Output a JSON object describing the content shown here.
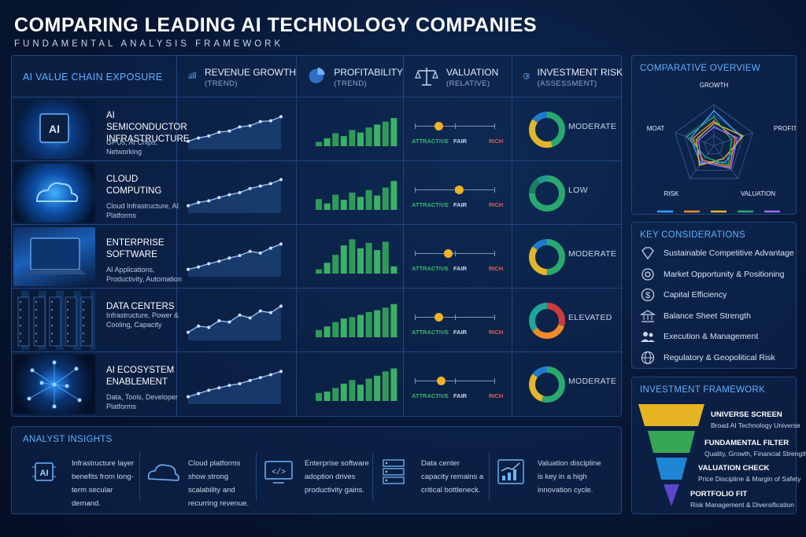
{
  "title": "COMPARING LEADING AI TECHNOLOGY COMPANIES",
  "subtitle": "FUNDAMENTAL ANALYSIS FRAMEWORK",
  "table": {
    "first_header": "AI VALUE CHAIN EXPOSURE",
    "columns": [
      {
        "title": "REVENUE GROWTH",
        "sub": "(TREND)",
        "icon": "bar-chart-icon"
      },
      {
        "title": "PROFITABILITY",
        "sub": "(TREND)",
        "icon": "pie-chart-icon"
      },
      {
        "title": "VALUATION",
        "sub": "(RELATIVE)",
        "icon": "scale-icon"
      },
      {
        "title": "INVESTMENT RISK",
        "sub": "(ASSESSMENT)",
        "icon": "shield-icon"
      }
    ],
    "valuation_scale": [
      "ATTRACTIVE",
      "FAIR",
      "RICH"
    ],
    "rows": [
      {
        "name": "AI SEMICONDUCTOR INFRASTRUCTURE",
        "desc": "GPUs, AI Chips, Networking",
        "image": "ai-chip-image",
        "growth": [
          20,
          28,
          33,
          42,
          45,
          55,
          58,
          68,
          70,
          80
        ],
        "profit": [
          12,
          22,
          36,
          28,
          45,
          38,
          52,
          60,
          68,
          78
        ],
        "valuation": 0.3,
        "risk": "MODERATE",
        "donut": [
          {
            "v": 0.45,
            "c": "#29a96f"
          },
          {
            "v": 0.4,
            "c": "#e0b72d"
          },
          {
            "v": 0.15,
            "c": "#1f7bc9"
          }
        ]
      },
      {
        "name": "CLOUD COMPUTING",
        "desc": "Cloud Infrastructure, AI Platforms",
        "image": "cloud-image",
        "growth": [
          18,
          26,
          30,
          38,
          45,
          50,
          60,
          66,
          72,
          82
        ],
        "profit": [
          30,
          18,
          42,
          28,
          48,
          36,
          55,
          40,
          62,
          80
        ],
        "valuation": 0.55,
        "risk": "LOW",
        "donut": [
          {
            "v": 0.75,
            "c": "#29a96f"
          },
          {
            "v": 0.15,
            "c": "#1b7f62"
          },
          {
            "v": 0.1,
            "c": "#1f9a8a"
          }
        ]
      },
      {
        "name": "ENTERPRISE SOFTWARE",
        "desc": "AI Applications, Productivity, Automation",
        "image": "laptop-image",
        "growth": [
          18,
          24,
          32,
          38,
          46,
          52,
          62,
          58,
          70,
          80
        ],
        "profit": [
          12,
          30,
          52,
          78,
          95,
          70,
          85,
          65,
          88,
          20
        ],
        "valuation": 0.42,
        "risk": "MODERATE",
        "donut": [
          {
            "v": 0.5,
            "c": "#29a96f"
          },
          {
            "v": 0.35,
            "c": "#e0b72d"
          },
          {
            "v": 0.15,
            "c": "#1f7bc9"
          }
        ]
      },
      {
        "name": "DATA CENTERS",
        "desc": "Infrastructure, Power & Cooling, Capacity",
        "image": "server-racks-image",
        "growth": [
          20,
          35,
          32,
          48,
          45,
          62,
          55,
          72,
          68,
          84
        ],
        "profit": [
          20,
          30,
          42,
          52,
          56,
          62,
          70,
          75,
          82,
          92
        ],
        "valuation": 0.3,
        "risk": "ELEVATED",
        "donut": [
          {
            "v": 0.3,
            "c": "#d23b3b"
          },
          {
            "v": 0.35,
            "c": "#f08a2a"
          },
          {
            "v": 0.35,
            "c": "#1fa69a"
          }
        ]
      },
      {
        "name": "AI ECOSYSTEM ENABLEMENT",
        "desc": "Data, Tools, Developer Platforms",
        "image": "network-image",
        "growth": [
          18,
          26,
          34,
          40,
          46,
          50,
          58,
          65,
          72,
          80
        ],
        "profit": [
          22,
          26,
          36,
          48,
          58,
          45,
          62,
          70,
          82,
          90
        ],
        "valuation": 0.33,
        "risk": "MODERATE",
        "donut": [
          {
            "v": 0.55,
            "c": "#29a96f"
          },
          {
            "v": 0.3,
            "c": "#e0b72d"
          },
          {
            "v": 0.15,
            "c": "#1f7bc9"
          }
        ]
      }
    ]
  },
  "overview": {
    "title": "COMPARATIVE OVERVIEW",
    "axes": [
      "GROWTH",
      "PROFITABILITY",
      "VALUATION",
      "RISK",
      "MOAT"
    ],
    "series": [
      {
        "color": "#3aa0ff",
        "values": [
          0.85,
          0.7,
          0.5,
          0.55,
          0.6
        ]
      },
      {
        "color": "#f08a2a",
        "values": [
          0.6,
          0.55,
          0.65,
          0.45,
          0.55
        ]
      },
      {
        "color": "#e0b72d",
        "values": [
          0.55,
          0.75,
          0.4,
          0.6,
          0.45
        ]
      },
      {
        "color": "#29a96f",
        "values": [
          0.7,
          0.45,
          0.6,
          0.35,
          0.7
        ]
      },
      {
        "color": "#9b6bff",
        "values": [
          0.45,
          0.6,
          0.7,
          0.5,
          0.4
        ]
      }
    ]
  },
  "considerations": {
    "title": "KEY CONSIDERATIONS",
    "items": [
      {
        "label": "Sustainable Competitive Advantage",
        "icon": "diamond-icon"
      },
      {
        "label": "Market Opportunity & Positioning",
        "icon": "target-icon"
      },
      {
        "label": "Capital Efficiency",
        "icon": "dollar-icon"
      },
      {
        "label": "Balance Sheet Strength",
        "icon": "bank-icon"
      },
      {
        "label": "Execution & Management",
        "icon": "people-icon"
      },
      {
        "label": "Regulatory & Geopolitical Risk",
        "icon": "globe-icon"
      }
    ]
  },
  "framework": {
    "title": "INVESTMENT FRAMEWORK",
    "stages": [
      {
        "title": "UNIVERSE SCREEN",
        "sub": "Broad AI Technology Universe",
        "color": "#e6b422"
      },
      {
        "title": "FUNDAMENTAL FILTER",
        "sub": "Quality, Growth, Financial Strength",
        "color": "#35a853"
      },
      {
        "title": "VALUATION CHECK",
        "sub": "Price Discipline & Margin of Safety",
        "color": "#1f86d6"
      },
      {
        "title": "PORTFOLIO FIT",
        "sub": "Risk Management & Diversification",
        "color": "#5b45c9"
      }
    ]
  },
  "insights": {
    "title": "ANALYST INSIGHTS",
    "items": [
      {
        "text": "Infrastructure layer benefits from long-term secular demand.",
        "icon": "ai-chip-icon"
      },
      {
        "text": "Cloud platforms show strong scalability and recurring revenue.",
        "icon": "cloud-icon"
      },
      {
        "text": "Enterprise software adoption drives productivity gains.",
        "icon": "code-monitor-icon"
      },
      {
        "text": "Data center capacity remains a critical bottleneck.",
        "icon": "server-icon"
      },
      {
        "text": "Valuation discipline is key in a high innovation cycle.",
        "icon": "chart-up-icon"
      }
    ]
  }
}
